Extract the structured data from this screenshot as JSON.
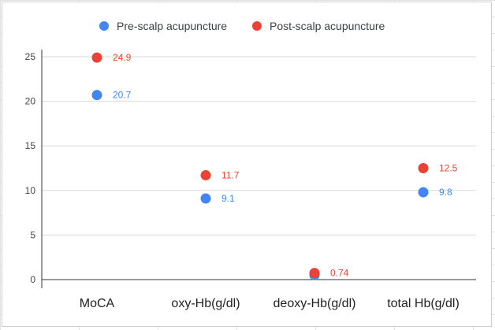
{
  "chart_data": {
    "type": "scatter",
    "categories": [
      "MoCA",
      "oxy-Hb(g/dl)",
      "deoxy-Hb(g/dl)",
      "total Hb(g/dl)"
    ],
    "series": [
      {
        "name": "Pre-scalp acupuncture",
        "color": "#4285f4",
        "values": [
          20.7,
          9.1,
          0.5,
          9.8
        ],
        "labels": [
          "20.7",
          "9.1",
          "",
          "9.8"
        ]
      },
      {
        "name": "Post-scalp acupuncture",
        "color": "#ea4335",
        "values": [
          24.9,
          11.7,
          0.74,
          12.5
        ],
        "labels": [
          "24.9",
          "11.7",
          "0.74",
          "12.5"
        ]
      }
    ],
    "yticks": [
      "0",
      "5",
      "10",
      "15",
      "20",
      "25"
    ],
    "ylim": [
      0,
      25
    ],
    "grid": true,
    "legend_position": "top"
  }
}
